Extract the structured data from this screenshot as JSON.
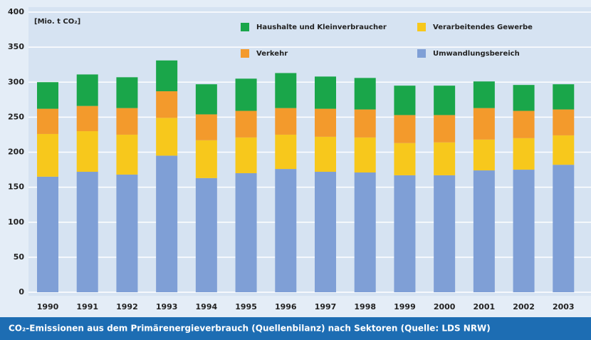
{
  "chart_data": {
    "type": "stacked_bar",
    "unit_label": "[Mio. t CO₂]",
    "caption": "CO₂-Emissionen aus dem Primärenergieverbrauch (Quellenbilanz) nach Sektoren (Quelle: LDS NRW)",
    "categories": [
      "1990",
      "1991",
      "1992",
      "1993",
      "1994",
      "1995",
      "1996",
      "1997",
      "1998",
      "1999",
      "2000",
      "2001",
      "2002",
      "2003"
    ],
    "series": [
      {
        "name": "Umwandlungsbereich",
        "color": "#7f9fd6",
        "values": [
          165,
          172,
          168,
          195,
          163,
          170,
          176,
          172,
          171,
          167,
          167,
          174,
          175,
          182
        ]
      },
      {
        "name": "Verarbeitendes Gewerbe",
        "color": "#f7c81c",
        "values": [
          61,
          58,
          57,
          54,
          54,
          51,
          49,
          50,
          50,
          46,
          47,
          44,
          45,
          42
        ]
      },
      {
        "name": "Verkehr",
        "color": "#f39a2c",
        "values": [
          36,
          36,
          38,
          38,
          37,
          38,
          38,
          40,
          40,
          40,
          39,
          45,
          39,
          37
        ]
      },
      {
        "name": "Haushalte und Kleinverbraucher",
        "color": "#1aa64a",
        "values": [
          38,
          45,
          44,
          44,
          43,
          46,
          50,
          46,
          45,
          42,
          42,
          38,
          37,
          36
        ]
      }
    ],
    "ylim": [
      0,
      400
    ],
    "yticks": [
      0,
      50,
      100,
      150,
      200,
      250,
      300,
      350,
      400
    ],
    "grid": true
  }
}
